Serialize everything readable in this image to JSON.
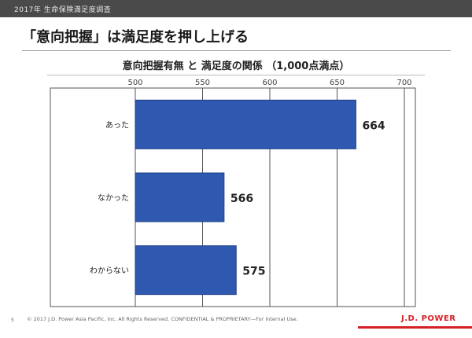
{
  "header": {
    "top_label": "2017年 生命保険満足度調査",
    "slide_title": "「意向把握」は満足度を押し上げる"
  },
  "chart_data": {
    "type": "bar",
    "orientation": "horizontal",
    "title": "意向把握有無 と 満足度の関係 （1,000点満点）",
    "categories": [
      "あった",
      "なかった",
      "わからない"
    ],
    "values": [
      664,
      566,
      575
    ],
    "value_labels": [
      "664",
      "566",
      "575"
    ],
    "xlim": [
      500,
      700
    ],
    "x_ticks": [
      500,
      550,
      600,
      650,
      700
    ],
    "x_tick_labels": [
      "500",
      "550",
      "600",
      "650",
      "700"
    ],
    "grid": true,
    "bar_color": "#2f59b0"
  },
  "footer": {
    "page_number": "5",
    "copyright": "© 2017 J.D. Power Asia Pacific, Inc. All Rights Reserved. CONFIDENTIAL & PROPRIETARY—For Internal Use.",
    "brand": "J.D. POWER",
    "brand_color": "#d62027"
  }
}
